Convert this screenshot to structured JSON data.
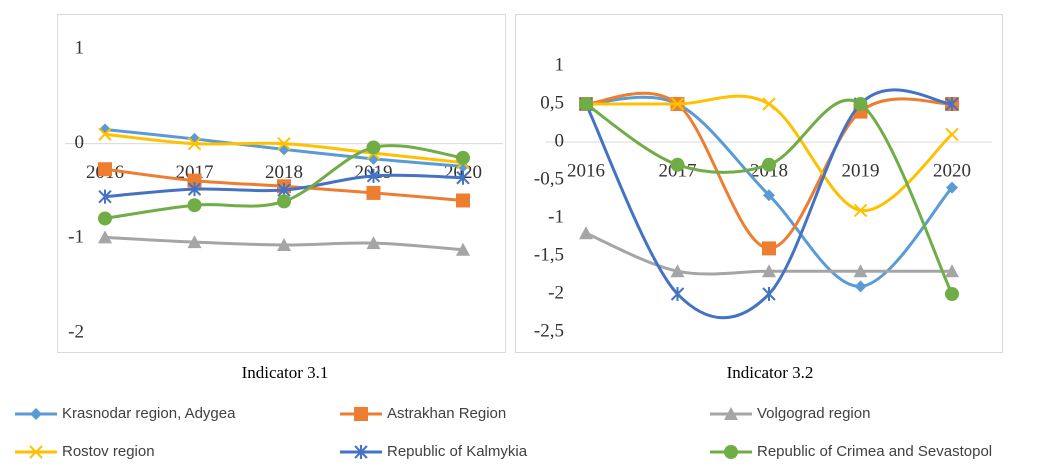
{
  "chart_data": [
    {
      "type": "line",
      "title": "Indicator 3.1",
      "categories": [
        "2016",
        "2017",
        "2018",
        "2019",
        "2020"
      ],
      "ylim": [
        -2,
        1
      ],
      "yticks": [
        1,
        0,
        -1,
        -2
      ],
      "series": [
        {
          "name": "Krasnodar region, Adygea",
          "color": "#5b9bd5",
          "marker": "diamond",
          "values": [
            0.15,
            0.05,
            -0.06,
            -0.16,
            -0.24
          ]
        },
        {
          "name": "Astrakhan Region",
          "color": "#ed7d31",
          "marker": "square",
          "values": [
            -0.27,
            -0.39,
            -0.45,
            -0.52,
            -0.6
          ]
        },
        {
          "name": "Volgograd region",
          "color": "#a5a5a5",
          "marker": "triangle",
          "values": [
            -0.99,
            -1.04,
            -1.07,
            -1.05,
            -1.12
          ]
        },
        {
          "name": "Rostov region",
          "color": "#ffc000",
          "marker": "x",
          "values": [
            0.1,
            0,
            0,
            -0.1,
            -0.2
          ]
        },
        {
          "name": "Republic of Kalmykia",
          "color": "#4472c4",
          "marker": "star",
          "values": [
            -0.56,
            -0.48,
            -0.49,
            -0.34,
            -0.36
          ]
        },
        {
          "name": "Republic of Crimea and Sevastopol",
          "color": "#70ad47",
          "marker": "circle",
          "values": [
            -0.79,
            -0.65,
            -0.61,
            -0.04,
            -0.15
          ]
        }
      ]
    },
    {
      "type": "line",
      "title": "Indicator 3.2",
      "categories": [
        "2016",
        "2017",
        "2018",
        "2019",
        "2020"
      ],
      "ylim": [
        -2.5,
        1
      ],
      "yticks": [
        1,
        {
          "value": 0.5,
          "label": "0,5"
        },
        0,
        {
          "value": -0.5,
          "label": "-0,5"
        },
        -1,
        {
          "value": -1.5,
          "label": "-1,5"
        },
        -2,
        {
          "value": -2.5,
          "label": "-2,5"
        }
      ],
      "series": [
        {
          "name": "Krasnodar region, Adygea",
          "color": "#5b9bd5",
          "marker": "diamond",
          "values": [
            0.5,
            0.5,
            -0.7,
            -1.9,
            -0.6
          ]
        },
        {
          "name": "Astrakhan Region",
          "color": "#ed7d31",
          "marker": "square",
          "values": [
            0.5,
            0.5,
            -1.4,
            0.4,
            0.5
          ]
        },
        {
          "name": "Volgograd region",
          "color": "#a5a5a5",
          "marker": "triangle",
          "values": [
            -1.2,
            -1.7,
            -1.7,
            -1.7,
            -1.7
          ]
        },
        {
          "name": "Rostov region",
          "color": "#ffc000",
          "marker": "x",
          "values": [
            0.5,
            0.5,
            0.5,
            -0.9,
            0.1
          ]
        },
        {
          "name": "Republic of Kalmykia",
          "color": "#4472c4",
          "marker": "star",
          "values": [
            0.5,
            -2,
            -2,
            0.5,
            0.5
          ]
        },
        {
          "name": "Republic of Crimea and Sevastopol",
          "color": "#70ad47",
          "marker": "circle",
          "values": [
            0.5,
            -0.3,
            -0.3,
            0.5,
            -2
          ]
        }
      ]
    }
  ]
}
